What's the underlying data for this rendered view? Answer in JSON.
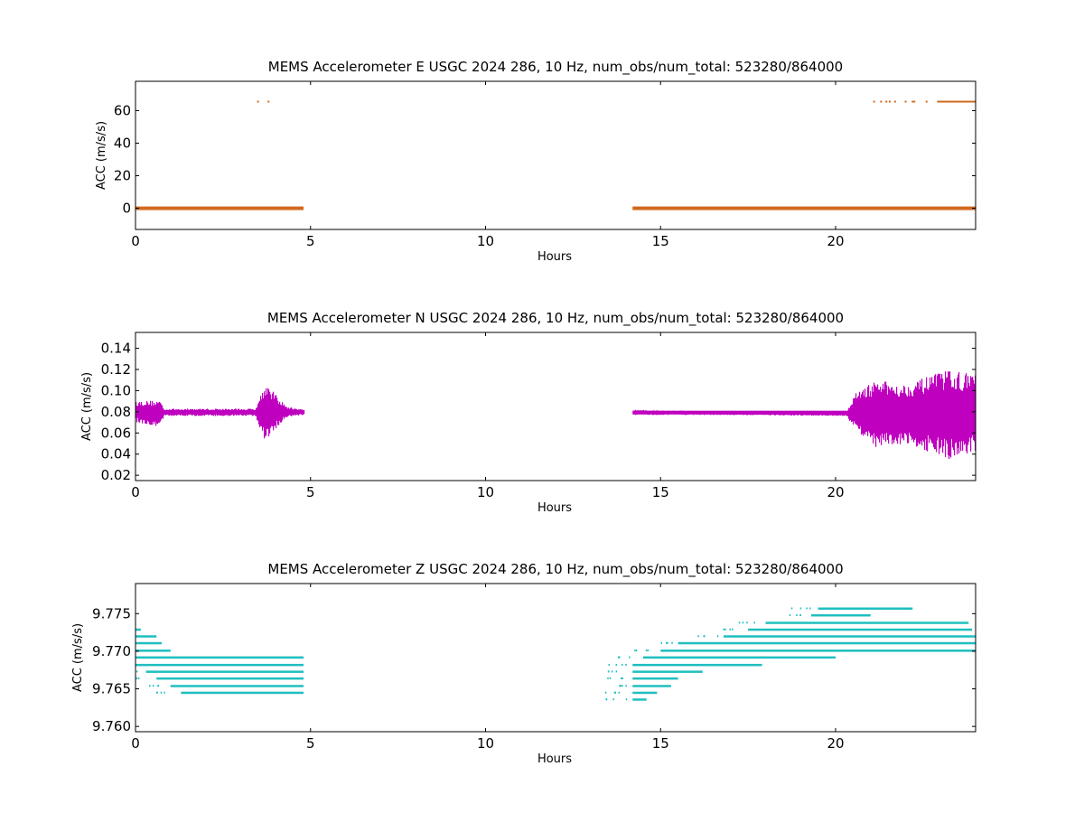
{
  "chart_data": [
    {
      "type": "scatter",
      "title": "MEMS Accelerometer E USGC 2024 286, 10 Hz, num_obs/num_total: 523280/864000",
      "xlabel": "Hours",
      "ylabel": "ACC (m/s/s)",
      "xlim": [
        0,
        24
      ],
      "ylim": [
        -13,
        78
      ],
      "xticks": [
        0,
        5,
        10,
        15,
        20
      ],
      "xtick_labels": [
        "0",
        "5",
        "10",
        "15",
        "20"
      ],
      "yticks": [
        0,
        20,
        40,
        60
      ],
      "ytick_labels": [
        "0",
        "20",
        "40",
        "60"
      ],
      "color": "#d2691e",
      "grid": false,
      "series": [
        {
          "segments": [
            {
              "x_start": 0.0,
              "x_end": 4.8,
              "y": 0.0
            },
            {
              "x_start": 14.2,
              "x_end": 24.0,
              "y": 0.0
            },
            {
              "x_start": 22.9,
              "x_end": 24.0,
              "y": 65.5
            }
          ],
          "points": [
            {
              "x": 3.5,
              "y": 65.5
            },
            {
              "x": 3.8,
              "y": 65.5
            },
            {
              "x": 21.1,
              "y": 65.5
            },
            {
              "x": 21.3,
              "y": 65.5
            },
            {
              "x": 21.45,
              "y": 65.5
            },
            {
              "x": 21.55,
              "y": 65.5
            },
            {
              "x": 21.7,
              "y": 65.5
            },
            {
              "x": 22.0,
              "y": 65.5
            },
            {
              "x": 22.2,
              "y": 65.5
            },
            {
              "x": 22.25,
              "y": 65.5
            },
            {
              "x": 22.6,
              "y": 65.5
            }
          ]
        }
      ]
    },
    {
      "type": "scatter",
      "title": "MEMS Accelerometer N USGC 2024 286, 10 Hz, num_obs/num_total: 523280/864000",
      "xlabel": "Hours",
      "ylabel": "ACC (m/s/s)",
      "xlim": [
        0,
        24
      ],
      "ylim": [
        0.015,
        0.155
      ],
      "xticks": [
        0,
        5,
        10,
        15,
        20
      ],
      "xtick_labels": [
        "0",
        "5",
        "10",
        "15",
        "20"
      ],
      "yticks": [
        0.02,
        0.04,
        0.06,
        0.08,
        0.1,
        0.12,
        0.14
      ],
      "ytick_labels": [
        "0.02",
        "0.04",
        "0.06",
        "0.08",
        "0.10",
        "0.12",
        "0.14"
      ],
      "color": "#bf00bf",
      "grid": false,
      "series": [
        {
          "envelope": [
            {
              "x": 0.0,
              "lo": 0.07,
              "hi": 0.09
            },
            {
              "x": 0.7,
              "lo": 0.066,
              "hi": 0.091
            },
            {
              "x": 0.8,
              "lo": 0.076,
              "hi": 0.083
            },
            {
              "x": 3.4,
              "lo": 0.076,
              "hi": 0.083
            },
            {
              "x": 3.7,
              "lo": 0.05,
              "hi": 0.108
            },
            {
              "x": 4.0,
              "lo": 0.064,
              "hi": 0.096
            },
            {
              "x": 4.3,
              "lo": 0.075,
              "hi": 0.085
            },
            {
              "x": 4.8,
              "lo": 0.077,
              "hi": 0.082
            },
            {
              "x": 14.2,
              "lo": 0.077,
              "hi": 0.082
            },
            {
              "x": 17.0,
              "lo": 0.077,
              "hi": 0.08
            },
            {
              "x": 20.3,
              "lo": 0.076,
              "hi": 0.08
            },
            {
              "x": 20.6,
              "lo": 0.06,
              "hi": 0.1
            },
            {
              "x": 21.2,
              "lo": 0.045,
              "hi": 0.11
            },
            {
              "x": 22.0,
              "lo": 0.05,
              "hi": 0.106
            },
            {
              "x": 23.2,
              "lo": 0.035,
              "hi": 0.12
            },
            {
              "x": 24.0,
              "lo": 0.042,
              "hi": 0.115
            }
          ],
          "gaps": [
            [
              4.8,
              14.2
            ]
          ]
        }
      ]
    },
    {
      "type": "scatter",
      "title": "MEMS Accelerometer Z USGC 2024 286, 10 Hz, num_obs/num_total: 523280/864000",
      "xlabel": "Hours",
      "ylabel": "ACC (m/s/s)",
      "xlim": [
        0,
        24
      ],
      "ylim": [
        9.7593,
        9.779
      ],
      "xticks": [
        0,
        5,
        10,
        15,
        20
      ],
      "xtick_labels": [
        "0",
        "5",
        "10",
        "15",
        "20"
      ],
      "yticks": [
        9.76,
        9.765,
        9.77,
        9.775
      ],
      "ytick_labels": [
        "9.760",
        "9.765",
        "9.770",
        "9.775"
      ],
      "color": "#1fbfbf",
      "grid": false,
      "series": [
        {
          "levels": [
            {
              "y": 9.7729,
              "x_start": 0.0,
              "x_end": 0.15
            },
            {
              "y": 9.772,
              "x_start": 0.0,
              "x_end": 0.6
            },
            {
              "y": 9.7711,
              "x_start": 0.0,
              "x_end": 0.75
            },
            {
              "y": 9.7701,
              "x_start": 0.0,
              "x_end": 1.0
            },
            {
              "y": 9.7692,
              "x_start": 0.0,
              "x_end": 4.8
            },
            {
              "y": 9.7682,
              "x_start": 0.0,
              "x_end": 4.8
            },
            {
              "y": 9.7673,
              "x_start": 0.3,
              "x_end": 4.8
            },
            {
              "y": 9.7664,
              "x_start": 0.6,
              "x_end": 4.8
            },
            {
              "y": 9.7654,
              "x_start": 1.0,
              "x_end": 4.8
            },
            {
              "y": 9.7645,
              "x_start": 1.3,
              "x_end": 4.8
            },
            {
              "y": 9.7692,
              "x_start": 14.5,
              "x_end": 20.0
            },
            {
              "y": 9.7682,
              "x_start": 14.2,
              "x_end": 17.9
            },
            {
              "y": 9.7673,
              "x_start": 14.2,
              "x_end": 16.2
            },
            {
              "y": 9.7664,
              "x_start": 14.2,
              "x_end": 15.5
            },
            {
              "y": 9.7654,
              "x_start": 14.2,
              "x_end": 15.3
            },
            {
              "y": 9.7645,
              "x_start": 14.2,
              "x_end": 14.9
            },
            {
              "y": 9.7636,
              "x_start": 14.2,
              "x_end": 14.6
            },
            {
              "y": 9.7701,
              "x_start": 15.0,
              "x_end": 24.0
            },
            {
              "y": 9.7711,
              "x_start": 15.5,
              "x_end": 24.0
            },
            {
              "y": 9.772,
              "x_start": 16.8,
              "x_end": 24.0
            },
            {
              "y": 9.7729,
              "x_start": 17.5,
              "x_end": 23.9
            },
            {
              "y": 9.7738,
              "x_start": 18.0,
              "x_end": 23.8
            },
            {
              "y": 9.7748,
              "x_start": 19.3,
              "x_end": 21.0
            },
            {
              "y": 9.7757,
              "x_start": 19.5,
              "x_end": 22.2
            }
          ],
          "gaps": [
            [
              4.8,
              14.2
            ]
          ]
        }
      ]
    }
  ]
}
